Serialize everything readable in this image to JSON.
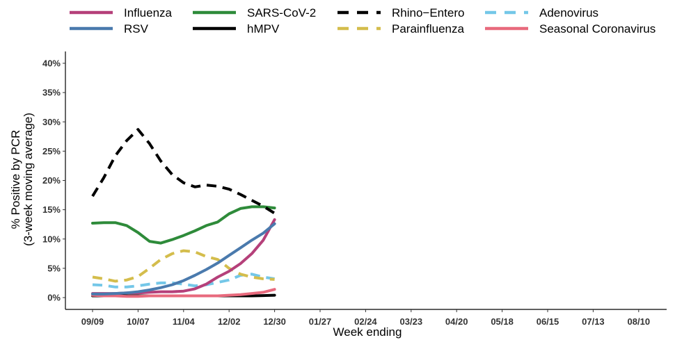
{
  "chart_data": {
    "type": "line",
    "xlabel": "Week ending",
    "ylabel_line1": "% Positive by PCR",
    "ylabel_line2": "(3-week moving average)",
    "x_tick_labels": [
      "09/09",
      "10/07",
      "11/04",
      "12/02",
      "12/30",
      "01/27",
      "02/24",
      "03/23",
      "04/20",
      "05/18",
      "06/15",
      "07/13",
      "08/10"
    ],
    "xlim": [
      0,
      12.7
    ],
    "y_tick_labels": [
      "0%",
      "5%",
      "10%",
      "15%",
      "20%",
      "25%",
      "30%",
      "35%",
      "40%"
    ],
    "ylim": [
      0,
      40
    ],
    "y_ticks": [
      0,
      5,
      10,
      15,
      20,
      25,
      30,
      35,
      40
    ],
    "grid": false,
    "legend_position": "top",
    "series": [
      {
        "name": "Influenza",
        "color": "#b5407a",
        "dash": false,
        "legend_row": 0,
        "legend_col": 0,
        "x": [
          0,
          0.25,
          0.5,
          0.75,
          1,
          1.25,
          1.5,
          1.75,
          2,
          2.25,
          2.5,
          2.75,
          3,
          3.25,
          3.5,
          3.75,
          4
        ],
        "y": [
          0.7,
          0.7,
          0.7,
          0.8,
          0.8,
          0.9,
          1.0,
          1.0,
          1.1,
          1.5,
          2.3,
          3.5,
          4.5,
          5.8,
          7.5,
          9.8,
          13.3
        ]
      },
      {
        "name": "RSV",
        "color": "#4a7aad",
        "dash": false,
        "legend_row": 1,
        "legend_col": 0,
        "x": [
          0,
          0.25,
          0.5,
          0.75,
          1,
          1.25,
          1.5,
          1.75,
          2,
          2.25,
          2.5,
          2.75,
          3,
          3.25,
          3.5,
          3.75,
          4
        ],
        "y": [
          0.6,
          0.6,
          0.7,
          0.8,
          1.0,
          1.3,
          1.7,
          2.2,
          2.9,
          3.8,
          4.8,
          5.9,
          7.2,
          8.5,
          9.8,
          11.0,
          12.6
        ]
      },
      {
        "name": "SARS-CoV-2",
        "color": "#2e8b3a",
        "dash": false,
        "legend_row": 0,
        "legend_col": 1,
        "x": [
          0,
          0.25,
          0.5,
          0.75,
          1,
          1.25,
          1.5,
          1.75,
          2,
          2.25,
          2.5,
          2.75,
          3,
          3.25,
          3.5,
          3.75,
          4
        ],
        "y": [
          12.7,
          12.8,
          12.8,
          12.3,
          11.1,
          9.6,
          9.3,
          9.9,
          10.6,
          11.4,
          12.3,
          12.9,
          14.3,
          15.2,
          15.5,
          15.5,
          15.3
        ]
      },
      {
        "name": "hMPV",
        "color": "#000000",
        "dash": false,
        "legend_row": 1,
        "legend_col": 1,
        "x": [
          0,
          0.5,
          1,
          1.5,
          2,
          2.5,
          3,
          3.25,
          3.5,
          3.75,
          4
        ],
        "y": [
          0.3,
          0.3,
          0.3,
          0.3,
          0.3,
          0.3,
          0.3,
          0.3,
          0.3,
          0.35,
          0.4
        ]
      },
      {
        "name": "Rhino−Entero",
        "color": "#000000",
        "dash": true,
        "legend_row": 0,
        "legend_col": 2,
        "x": [
          0,
          0.25,
          0.5,
          0.75,
          1,
          1.25,
          1.5,
          1.75,
          2,
          2.25,
          2.5,
          2.75,
          3,
          3.25,
          3.5,
          3.75,
          4
        ],
        "y": [
          17.3,
          20.5,
          24.2,
          26.8,
          28.7,
          26.3,
          23.3,
          21.0,
          19.6,
          18.9,
          19.2,
          19.0,
          18.5,
          17.6,
          16.6,
          15.6,
          14.4
        ]
      },
      {
        "name": "Parainfluenza",
        "color": "#d4bd4c",
        "dash": true,
        "legend_row": 1,
        "legend_col": 2,
        "x": [
          0,
          0.25,
          0.5,
          0.75,
          1,
          1.25,
          1.5,
          1.75,
          2,
          2.25,
          2.5,
          2.75,
          3,
          3.25,
          3.5,
          3.75,
          4
        ],
        "y": [
          3.5,
          3.2,
          2.8,
          3.0,
          3.6,
          5.0,
          6.5,
          7.5,
          8.0,
          7.8,
          7.0,
          6.5,
          5.0,
          4.0,
          3.5,
          3.2,
          3.1
        ]
      },
      {
        "name": "Adenovirus",
        "color": "#74c7e8",
        "dash": true,
        "legend_row": 0,
        "legend_col": 3,
        "x": [
          0,
          0.25,
          0.5,
          0.75,
          1,
          1.25,
          1.5,
          1.75,
          2,
          2.25,
          2.5,
          2.75,
          3,
          3.25,
          3.5,
          3.75,
          4
        ],
        "y": [
          2.2,
          2.1,
          1.8,
          1.8,
          2.0,
          2.3,
          2.5,
          2.5,
          2.3,
          2.0,
          2.2,
          2.6,
          3.0,
          3.8,
          4.0,
          3.5,
          3.2
        ]
      },
      {
        "name": "Seasonal Coronavirus",
        "color": "#e86a7d",
        "dash": false,
        "legend_row": 1,
        "legend_col": 3,
        "x": [
          0,
          0.25,
          0.5,
          0.75,
          1,
          1.25,
          1.5,
          1.75,
          2,
          2.25,
          2.5,
          2.75,
          3,
          3.25,
          3.5,
          3.75,
          4
        ],
        "y": [
          0.4,
          0.3,
          0.3,
          0.2,
          0.2,
          0.3,
          0.3,
          0.3,
          0.3,
          0.3,
          0.3,
          0.3,
          0.4,
          0.5,
          0.7,
          0.9,
          1.4
        ]
      }
    ]
  }
}
